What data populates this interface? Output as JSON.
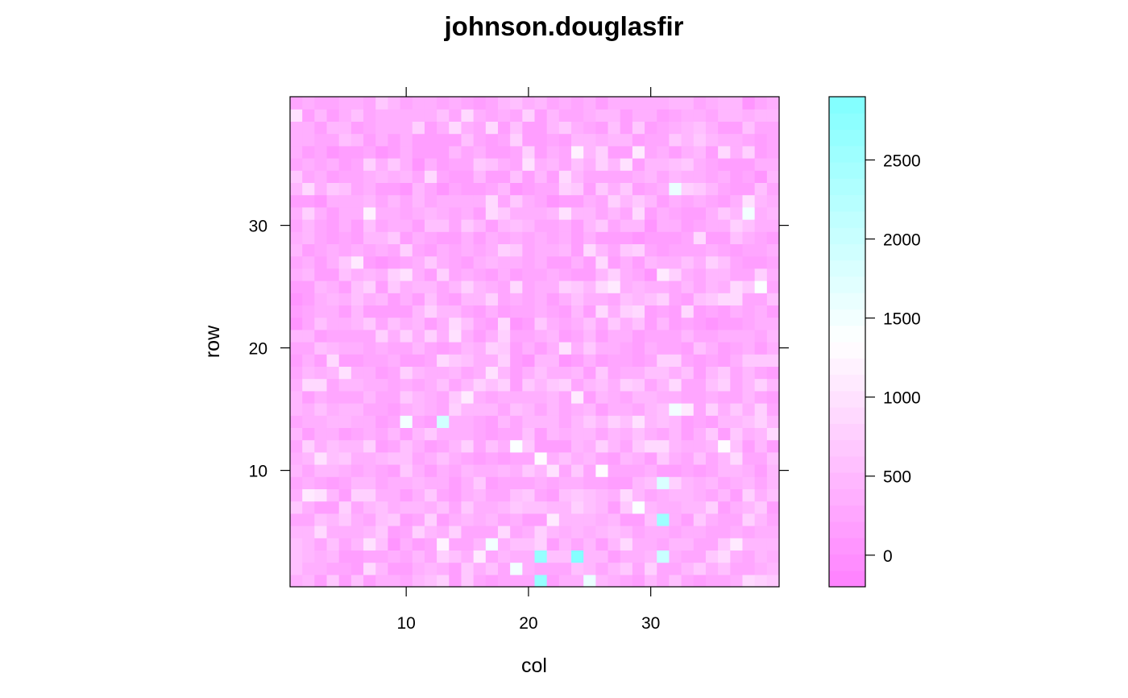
{
  "chart_data": {
    "type": "heatmap",
    "title": "johnson.douglasfir",
    "xlabel": "col",
    "ylabel": "row",
    "x_range": [
      1,
      40
    ],
    "y_range": [
      1,
      40
    ],
    "x_ticks": [
      10,
      20,
      30
    ],
    "y_ticks": [
      10,
      20,
      30
    ],
    "color_range": [
      -200,
      2900
    ],
    "colorkey_ticks": [
      0,
      500,
      1000,
      1500,
      2000,
      2500
    ],
    "colorkey_levels": 30,
    "color_low": "#ff80ff",
    "color_mid": "#ffffff",
    "color_high": "#80ffff",
    "grid": false,
    "legend_position": "right",
    "notable_cells": [
      {
        "col": 21,
        "row": 1,
        "value": 2600
      },
      {
        "col": 21,
        "row": 3,
        "value": 2600
      },
      {
        "col": 24,
        "row": 3,
        "value": 2800
      },
      {
        "col": 31,
        "row": 3,
        "value": 2000
      },
      {
        "col": 31,
        "row": 6,
        "value": 2500
      },
      {
        "col": 31,
        "row": 9,
        "value": 1800
      },
      {
        "col": 13,
        "row": 14,
        "value": 1900
      },
      {
        "col": 25,
        "row": 1,
        "value": 1600
      },
      {
        "col": 19,
        "row": 2,
        "value": 1500
      },
      {
        "col": 17,
        "row": 4,
        "value": 1500
      },
      {
        "col": 19,
        "row": 12,
        "value": 1400
      },
      {
        "col": 10,
        "row": 14,
        "value": 1500
      },
      {
        "col": 32,
        "row": 15,
        "value": 1500
      },
      {
        "col": 32,
        "row": 33,
        "value": 1600
      },
      {
        "col": 38,
        "row": 31,
        "value": 1500
      },
      {
        "col": 39,
        "row": 25,
        "value": 1400
      },
      {
        "col": 36,
        "row": 12,
        "value": 1300
      },
      {
        "col": 21,
        "row": 11,
        "value": 1300
      },
      {
        "col": 26,
        "row": 10,
        "value": 1300
      },
      {
        "col": 29,
        "row": 7,
        "value": 1400
      },
      {
        "col": 7,
        "row": 31,
        "value": 1200
      },
      {
        "col": 24,
        "row": 36,
        "value": 1200
      },
      {
        "col": 13,
        "row": 4,
        "value": 1200
      },
      {
        "col": 22,
        "row": 6,
        "value": 1100
      },
      {
        "col": 27,
        "row": 25,
        "value": 1100
      },
      {
        "col": 31,
        "row": 26,
        "value": 1100
      },
      {
        "col": 29,
        "row": 36,
        "value": 1100
      },
      {
        "col": 15,
        "row": 16,
        "value": 1100
      },
      {
        "col": 24,
        "row": 16,
        "value": 1100
      }
    ]
  }
}
